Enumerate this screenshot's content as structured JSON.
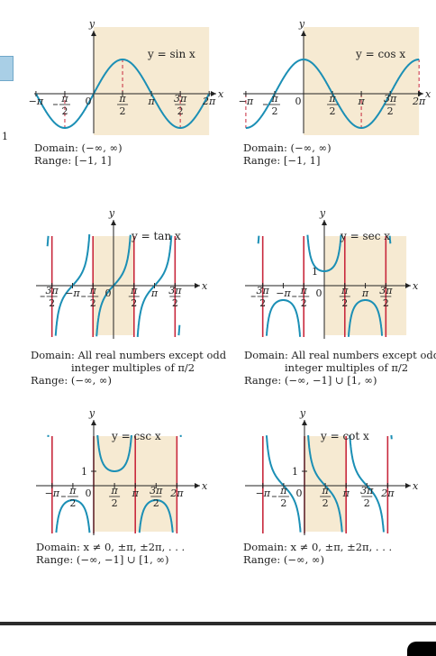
{
  "side_number": "1",
  "graphs": [
    {
      "id": "sin",
      "title": "y = sin x",
      "ticks": [
        "−π",
        "−π/2",
        "0",
        "π/2",
        "π",
        "3π/2",
        "2π"
      ],
      "domain": "Domain: (−∞, ∞)",
      "range": "Range:    [−1, 1]"
    },
    {
      "id": "cos",
      "title": "y = cos x",
      "ticks": [
        "−π",
        "−π/2",
        "0",
        "π/2",
        "π",
        "3π/2",
        "2π"
      ],
      "domain": "Domain: (−∞, ∞)",
      "range": "Range:    [−1, 1]"
    },
    {
      "id": "tan",
      "title": "y = tan x",
      "ticks": [
        "−3π/2",
        "−π",
        "−π/2",
        "0",
        "π/2",
        "π",
        "3π/2"
      ],
      "domain": "Domain: All real numbers except odd",
      "domain_line2": "integer multiples of π/2",
      "range": "Range:    (−∞, ∞)"
    },
    {
      "id": "sec",
      "title": "y = sec x",
      "ticks": [
        "−3π/2",
        "−π",
        "−π/2",
        "0",
        "π/2",
        "π",
        "3π/2"
      ],
      "y_tick": "1",
      "domain": "Domain: All real numbers except odd",
      "domain_line2": "integer multiples of π/2",
      "range": "Range:    (−∞, −1] ∪ [1, ∞)"
    },
    {
      "id": "csc",
      "title": "y = csc x",
      "ticks": [
        "−π",
        "−π/2",
        "0",
        "π/2",
        "π",
        "3π/2",
        "2π"
      ],
      "y_tick": "1",
      "domain": "Domain: x ≠ 0, ±π, ±2π, . . .",
      "range": "Range:    (−∞, −1] ∪ [1, ∞)"
    },
    {
      "id": "cot",
      "title": "y = cot x",
      "ticks": [
        "−π",
        "−π/2",
        "0",
        "π/2",
        "π",
        "3π/2",
        "2π"
      ],
      "y_tick": "1",
      "domain": "Domain: x ≠ 0, ±π, ±2π, . . .",
      "range": "Range:    (−∞, ∞)"
    }
  ],
  "axis_labels": {
    "x": "x",
    "y": "y"
  },
  "colors": {
    "curve": "#1b8fb5",
    "asymptote": "#c8283c",
    "shade": "#f6ead2",
    "axis": "#222222"
  }
}
